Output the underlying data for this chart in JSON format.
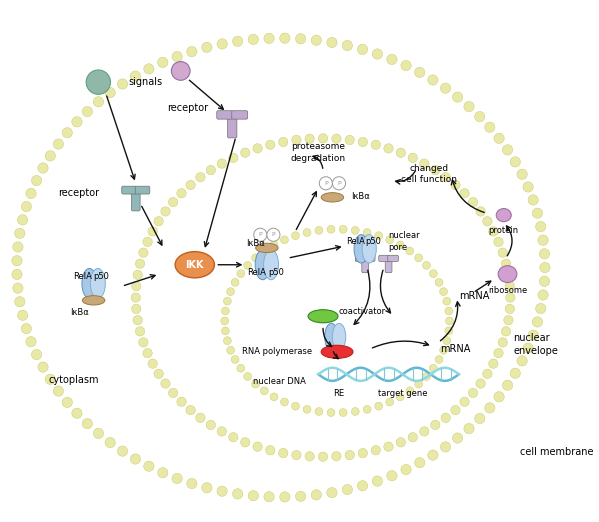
{
  "bg_color": "#ffffff",
  "mem_bead_color": "#e8e8a8",
  "mem_bead_edge": "#c8c860",
  "rela_color": "#a8c8e8",
  "p50_color": "#c0d8f0",
  "ikba_color": "#c8a878",
  "ikk_color": "#e8904c",
  "signal1_color": "#90b8a8",
  "signal2_color": "#d0a8d0",
  "receptor1_color": "#90b8b8",
  "receptor2_color": "#c0a8d0",
  "coactivator_color": "#70c840",
  "rna_pol_color": "#e83030",
  "dna1_color": "#60b8d0",
  "dna2_color": "#90d8e0",
  "mrna_color": "#e09098",
  "protein_color": "#d0a0d0",
  "ribosome_color": "#d0a0d0",
  "arrow_color": "#111111",
  "labels": {
    "signals": "signals",
    "receptor_top": "receptor",
    "receptor_left": "receptor",
    "ikba": "IκBα",
    "ikk": "IKK",
    "rela": "RelA",
    "p50": "p50",
    "proteasome": "proteasome\ndegradation",
    "nuclear_pore": "nuclear\npore",
    "coactivator": "coactivator",
    "rna_polymerase": "RNA polymerase",
    "nuclear_dna": "nuclear DNA",
    "re": "RE",
    "target_gene": "target gene",
    "mrna_inside": "mRNA",
    "mrna_outside": "mRNA",
    "ribosome": "ribosome",
    "protein": "protein",
    "changed_cell": "changed\ncell function",
    "cytoplasm": "cytoplasm",
    "nuclear_envelope": "nuclear\nenvelope",
    "cell_membrane": "cell membrane"
  },
  "font_size": 7.0
}
